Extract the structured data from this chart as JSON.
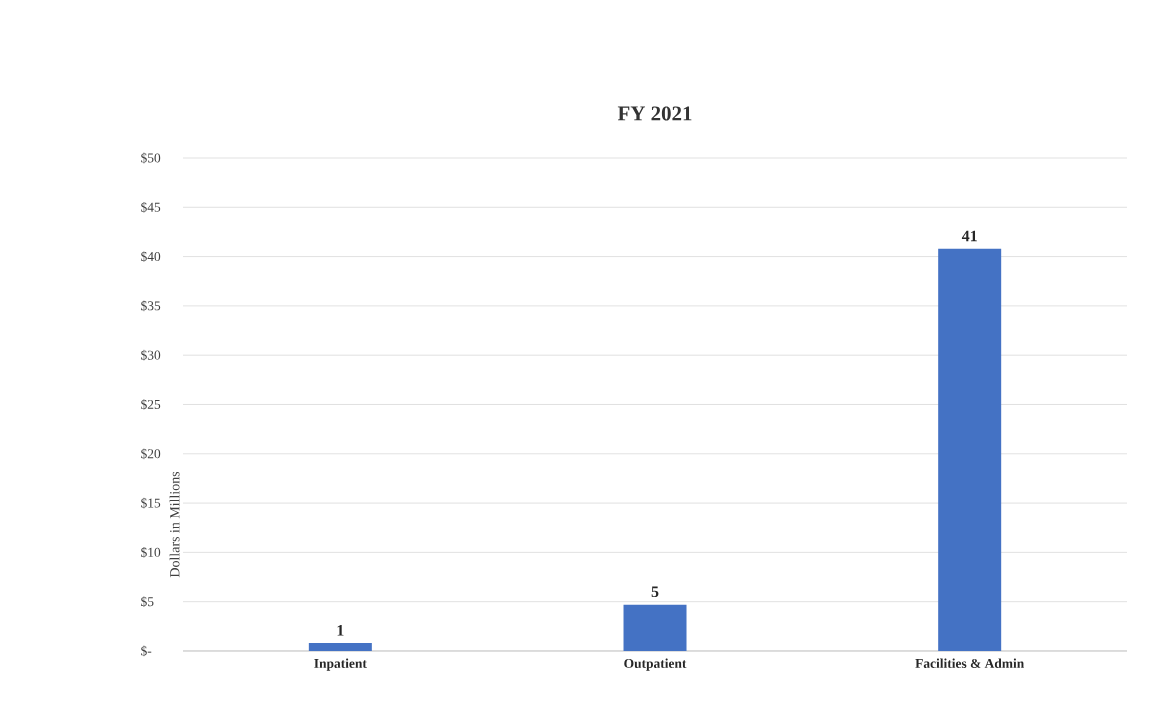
{
  "chart_data": {
    "type": "bar",
    "title": "FY 2021",
    "ylabel": "Dollars in Millions",
    "categories": [
      "Inpatient",
      "Outpatient",
      "Facilities & Admin"
    ],
    "values": [
      0.8,
      4.7,
      40.8
    ],
    "value_labels": [
      "1",
      "5",
      "41"
    ],
    "color": "#4472c4",
    "ylim": [
      0,
      50
    ],
    "yticks": [
      {
        "value": 0,
        "label": "$-"
      },
      {
        "value": 5,
        "label": "$5"
      },
      {
        "value": 10,
        "label": "$10"
      },
      {
        "value": 15,
        "label": "$15"
      },
      {
        "value": 20,
        "label": "$20"
      },
      {
        "value": 25,
        "label": "$25"
      },
      {
        "value": 30,
        "label": "$30"
      },
      {
        "value": 35,
        "label": "$35"
      },
      {
        "value": 40,
        "label": "$40"
      },
      {
        "value": 45,
        "label": "$45"
      },
      {
        "value": 50,
        "label": "$50"
      }
    ],
    "grid": "y"
  }
}
